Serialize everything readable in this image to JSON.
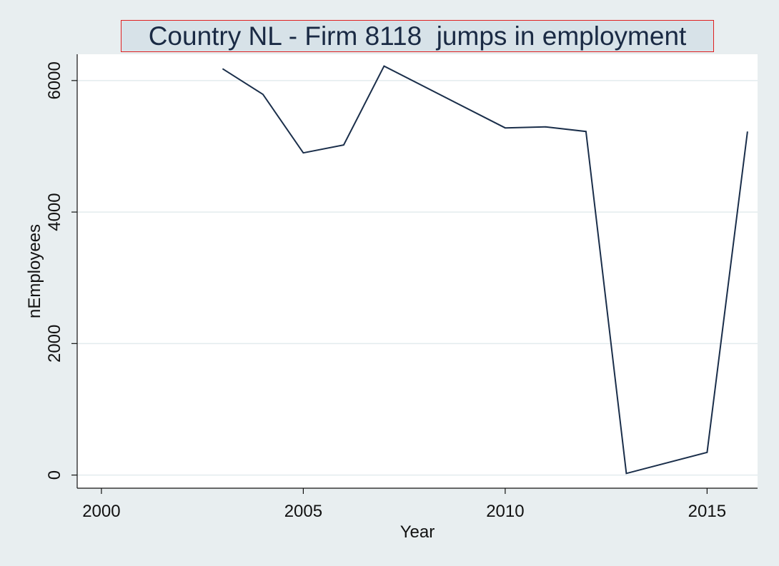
{
  "chart_data": {
    "type": "line",
    "title": "Country NL - Firm 8118  jumps in employment",
    "xlabel": "Year",
    "ylabel": "nEmployees",
    "xlim": [
      1999.4,
      2016.25
    ],
    "ylim": [
      -200,
      6400
    ],
    "xticks": [
      2000,
      2005,
      2010,
      2015
    ],
    "yticks": [
      0,
      2000,
      4000,
      6000
    ],
    "grid": true,
    "legend": "none",
    "line_color": "#1a2e4a",
    "series": [
      {
        "x": [
          2003,
          2004,
          2005,
          2006,
          2007,
          2010,
          2011,
          2012,
          2013,
          2015,
          2016
        ],
        "values": [
          6180,
          5790,
          4900,
          5020,
          6220,
          5280,
          5295,
          5225,
          25,
          345,
          5225
        ]
      }
    ]
  }
}
